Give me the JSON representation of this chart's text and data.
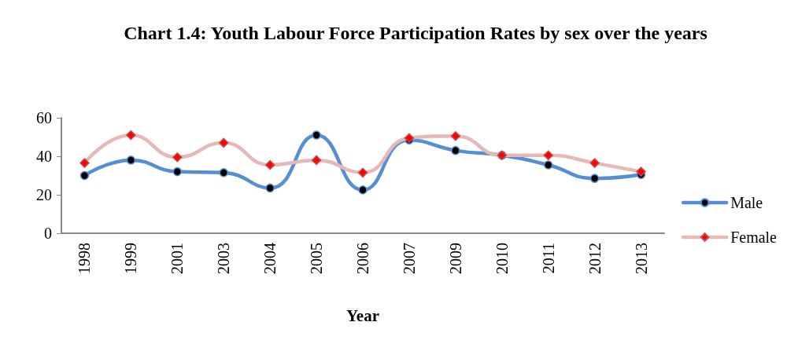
{
  "chart_data": {
    "type": "line",
    "title": "Chart 1.4: Youth Labour Force Participation Rates by sex over the years",
    "xlabel": "Year",
    "categories": [
      "1998",
      "1999",
      "2001",
      "2003",
      "2004",
      "2005",
      "2006",
      "2007",
      "2009",
      "2010",
      "2011",
      "2012",
      "2013"
    ],
    "series": [
      {
        "name": "Male",
        "color": "#558ed5",
        "marker": "circle",
        "values": [
          30,
          38,
          32,
          31.5,
          23.5,
          51,
          22.5,
          48.5,
          43,
          40.5,
          35.5,
          28.5,
          30.5
        ]
      },
      {
        "name": "Female",
        "color": "#e6b9b8",
        "marker": "diamond",
        "values": [
          36.5,
          51,
          39.5,
          47,
          35.5,
          38,
          31.5,
          49.5,
          50.5,
          40.5,
          40.5,
          36.5,
          32
        ]
      }
    ],
    "ylim": [
      0,
      60
    ],
    "yticks": [
      0,
      20,
      40,
      60
    ],
    "grid": false,
    "legend": "right"
  }
}
